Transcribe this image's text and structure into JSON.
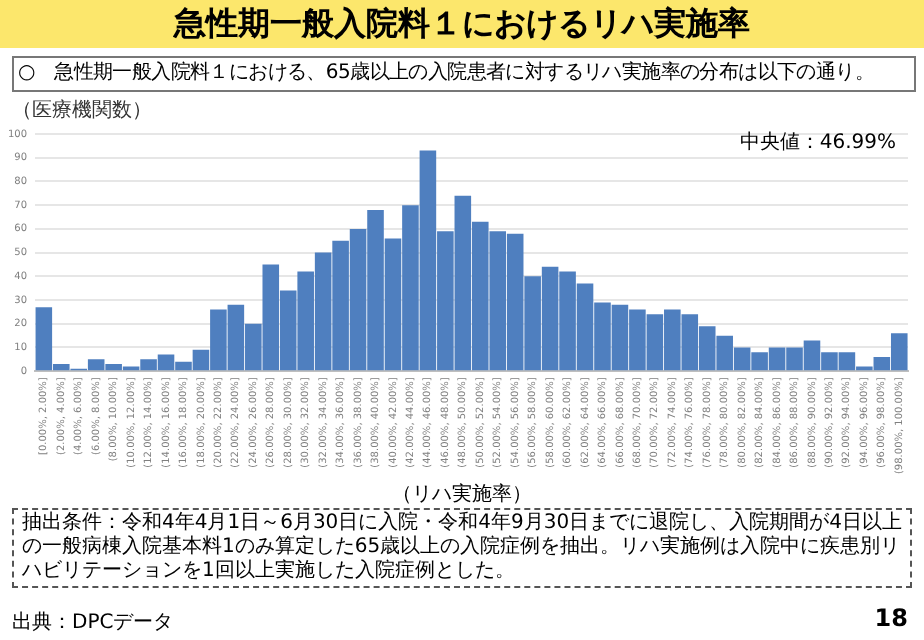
{
  "chart_data": {
    "type": "bar",
    "title": "急性期一般入院料１におけるリハ実施率",
    "subtitle": "○　急性期一般入院料１における、65歳以上の入院患者に対するリハ実施率の分布は以下の通り。",
    "xlabel": "（リハ実施率）",
    "ylabel": "（医療機関数）",
    "annotations": [
      "中央値：46.99%",
      "抽出条件：令和4年4月1日～6月30日に入院・令和4年9月30日までに退院し、入院期間が4日以上の一般病棟入院基本料1のみ算定した65歳以上の入院症例を抽出。リハ実施例は入院中に疾患別リハビリテーションを1回以上実施した入院症例とした。",
      "出典：DPCデータ",
      "18"
    ],
    "categories": [
      "[0.00%, 2.00%]",
      "(2.00%, 4.00%]",
      "(4.00%, 6.00%]",
      "(6.00%, 8.00%]",
      "(8.00%, 10.00%]",
      "(10.00%, 12.00%]",
      "(12.00%, 14.00%]",
      "(14.00%, 16.00%]",
      "(16.00%, 18.00%]",
      "(18.00%, 20.00%]",
      "(20.00%, 22.00%]",
      "(22.00%, 24.00%]",
      "(24.00%, 26.00%]",
      "(26.00%, 28.00%]",
      "(28.00%, 30.00%]",
      "(30.00%, 32.00%]",
      "(32.00%, 34.00%]",
      "(34.00%, 36.00%]",
      "(36.00%, 38.00%]",
      "(38.00%, 40.00%]",
      "(40.00%, 42.00%]",
      "(42.00%, 44.00%]",
      "(44.00%, 46.00%]",
      "(46.00%, 48.00%]",
      "(48.00%, 50.00%]",
      "(50.00%, 52.00%]",
      "(52.00%, 54.00%]",
      "(54.00%, 56.00%]",
      "(56.00%, 58.00%]",
      "(58.00%, 60.00%]",
      "(60.00%, 62.00%]",
      "(62.00%, 64.00%]",
      "(64.00%, 66.00%]",
      "(66.00%, 68.00%]",
      "(68.00%, 70.00%]",
      "(70.00%, 72.00%]",
      "(72.00%, 74.00%]",
      "(74.00%, 76.00%]",
      "(76.00%, 78.00%]",
      "(78.00%, 80.00%]",
      "(80.00%, 82.00%]",
      "(82.00%, 84.00%]",
      "(84.00%, 86.00%]",
      "(86.00%, 88.00%]",
      "(88.00%, 90.00%]",
      "(90.00%, 92.00%]",
      "(92.00%, 94.00%]",
      "(94.00%, 96.00%]",
      "(96.00%, 98.00%]",
      "(98.00%, 100.00%]"
    ],
    "values": [
      27,
      3,
      1,
      5,
      3,
      2,
      5,
      7,
      4,
      9,
      26,
      28,
      20,
      45,
      34,
      42,
      50,
      55,
      60,
      68,
      56,
      70,
      93,
      59,
      74,
      63,
      59,
      58,
      40,
      44,
      42,
      37,
      29,
      28,
      26,
      24,
      26,
      24,
      19,
      15,
      10,
      8,
      10,
      10,
      13,
      8,
      8,
      2,
      6,
      16
    ],
    "color": "#4f7fbf",
    "ylim": [
      0,
      100
    ],
    "yticks": [
      0,
      10,
      20,
      30,
      40,
      50,
      60,
      70,
      80,
      90,
      100
    ],
    "grid": "y"
  }
}
